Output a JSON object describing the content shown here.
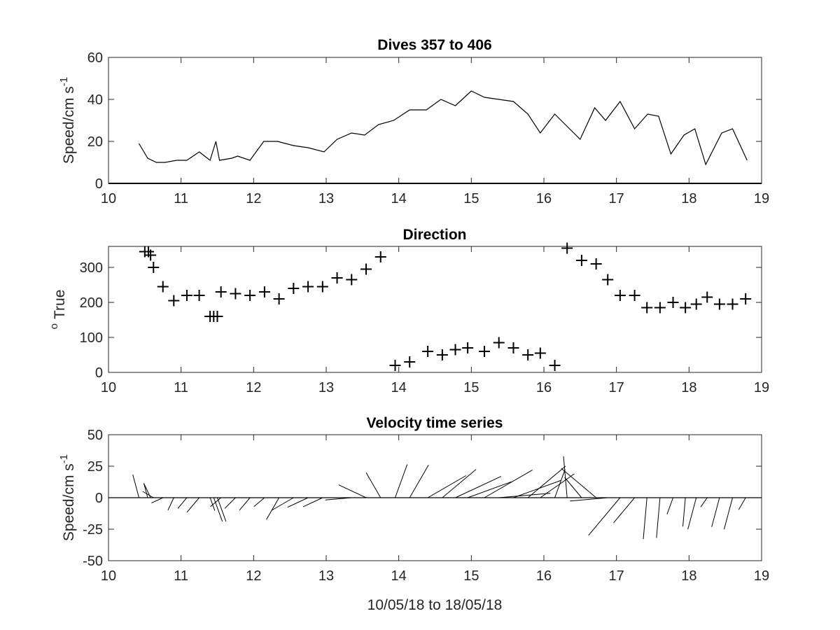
{
  "chart_data": [
    {
      "type": "line",
      "title": "Dives 357 to 406",
      "ylabel": "Speed/cm s",
      "ylabel_sup": "-1",
      "xlim": [
        10,
        19
      ],
      "ylim": [
        0,
        60
      ],
      "xticks": [
        10,
        11,
        12,
        13,
        14,
        15,
        16,
        17,
        18,
        19
      ],
      "yticks": [
        0,
        20,
        40,
        60
      ],
      "series": [
        {
          "x": [
            10.42,
            10.54,
            10.66,
            10.78,
            10.94,
            11.08,
            11.25,
            11.4,
            11.48,
            11.53,
            11.7,
            11.78,
            11.95,
            12.14,
            12.33,
            12.55,
            12.75,
            12.97,
            13.15,
            13.35,
            13.53,
            13.72,
            13.93,
            14.15,
            14.38,
            14.58,
            14.78,
            15.0,
            15.18,
            15.38,
            15.58,
            15.78,
            15.95,
            16.15,
            16.5,
            16.7,
            16.85,
            17.05,
            17.25,
            17.43,
            17.58,
            17.75,
            17.93,
            18.08,
            18.23,
            18.45,
            18.6,
            18.8
          ],
          "y": [
            19,
            12,
            10,
            10,
            11,
            11,
            15,
            11,
            20,
            11,
            12,
            13,
            11,
            20,
            20,
            18,
            17,
            15,
            21,
            24,
            23,
            28,
            30,
            35,
            35,
            40,
            37,
            44,
            41,
            40,
            39,
            33,
            24,
            33,
            21,
            36,
            30,
            39,
            26,
            33,
            32,
            14,
            23,
            26,
            9,
            24,
            26,
            11
          ]
        }
      ]
    },
    {
      "type": "scatter",
      "title": "Direction",
      "ylabel": "True",
      "ylabel_sup": "o",
      "marker": "+",
      "xlim": [
        10,
        19
      ],
      "ylim": [
        0,
        360
      ],
      "xticks": [
        10,
        11,
        12,
        13,
        14,
        15,
        16,
        17,
        18,
        19
      ],
      "yticks": [
        0,
        100,
        200,
        300
      ],
      "series": [
        {
          "x": [
            10.5,
            10.55,
            10.58,
            10.62,
            10.75,
            10.9,
            11.08,
            11.25,
            11.4,
            11.45,
            11.5,
            11.55,
            11.75,
            11.95,
            12.15,
            12.35,
            12.55,
            12.75,
            12.95,
            13.15,
            13.35,
            13.55,
            13.75,
            13.95,
            14.15,
            14.4,
            14.6,
            14.78,
            14.95,
            15.18,
            15.38,
            15.58,
            15.78,
            15.95,
            16.15,
            16.32,
            16.52,
            16.72,
            16.88,
            17.05,
            17.25,
            17.42,
            17.6,
            17.78,
            17.95,
            18.1,
            18.25,
            18.42,
            18.6,
            18.78
          ],
          "y": [
            345,
            345,
            335,
            300,
            245,
            205,
            220,
            220,
            160,
            160,
            160,
            230,
            225,
            220,
            230,
            210,
            240,
            245,
            245,
            270,
            265,
            295,
            330,
            20,
            30,
            60,
            50,
            65,
            70,
            60,
            85,
            70,
            50,
            55,
            20,
            355,
            320,
            310,
            265,
            220,
            220,
            185,
            185,
            200,
            185,
            195,
            215,
            195,
            195,
            210
          ]
        }
      ]
    },
    {
      "type": "quiver",
      "title": "Velocity time series",
      "ylabel": "Speed/cm s",
      "ylabel_sup": "-1",
      "xlabel": "10/05/18 to 18/05/18",
      "xlim": [
        10,
        19
      ],
      "ylim": [
        -50,
        50
      ],
      "xticks": [
        10,
        11,
        12,
        13,
        14,
        15,
        16,
        17,
        18,
        19
      ],
      "yticks": [
        -50,
        -25,
        0,
        25,
        50
      ],
      "series": [
        {
          "x": [
            10.42,
            10.54,
            10.58,
            10.62,
            10.75,
            10.9,
            11.08,
            11.25,
            11.4,
            11.45,
            11.5,
            11.55,
            11.75,
            11.95,
            12.15,
            12.35,
            12.55,
            12.75,
            12.95,
            13.15,
            13.35,
            13.55,
            13.75,
            13.95,
            14.15,
            14.4,
            14.6,
            14.78,
            14.95,
            15.18,
            15.38,
            15.58,
            15.78,
            15.95,
            16.15,
            16.32,
            16.52,
            16.72,
            16.88,
            17.05,
            17.25,
            17.42,
            17.6,
            17.78,
            17.95,
            18.1,
            18.25,
            18.42,
            18.6,
            18.78
          ],
          "speed": [
            19,
            12,
            12,
            10,
            10,
            11,
            11,
            15,
            11,
            20,
            20,
            11,
            12,
            13,
            11,
            20,
            20,
            18,
            17,
            15,
            21,
            24,
            23,
            28,
            30,
            35,
            35,
            40,
            37,
            44,
            41,
            40,
            39,
            33,
            24,
            33,
            21,
            36,
            30,
            39,
            26,
            33,
            32,
            14,
            23,
            26,
            9,
            24,
            26,
            11
          ],
          "direction": [
            345,
            345,
            335,
            300,
            245,
            205,
            220,
            220,
            160,
            160,
            160,
            230,
            225,
            220,
            230,
            210,
            240,
            245,
            245,
            270,
            265,
            295,
            330,
            20,
            30,
            60,
            50,
            65,
            70,
            60,
            85,
            70,
            50,
            55,
            20,
            355,
            320,
            310,
            265,
            220,
            220,
            185,
            185,
            200,
            185,
            195,
            215,
            195,
            195,
            210
          ]
        }
      ]
    }
  ]
}
